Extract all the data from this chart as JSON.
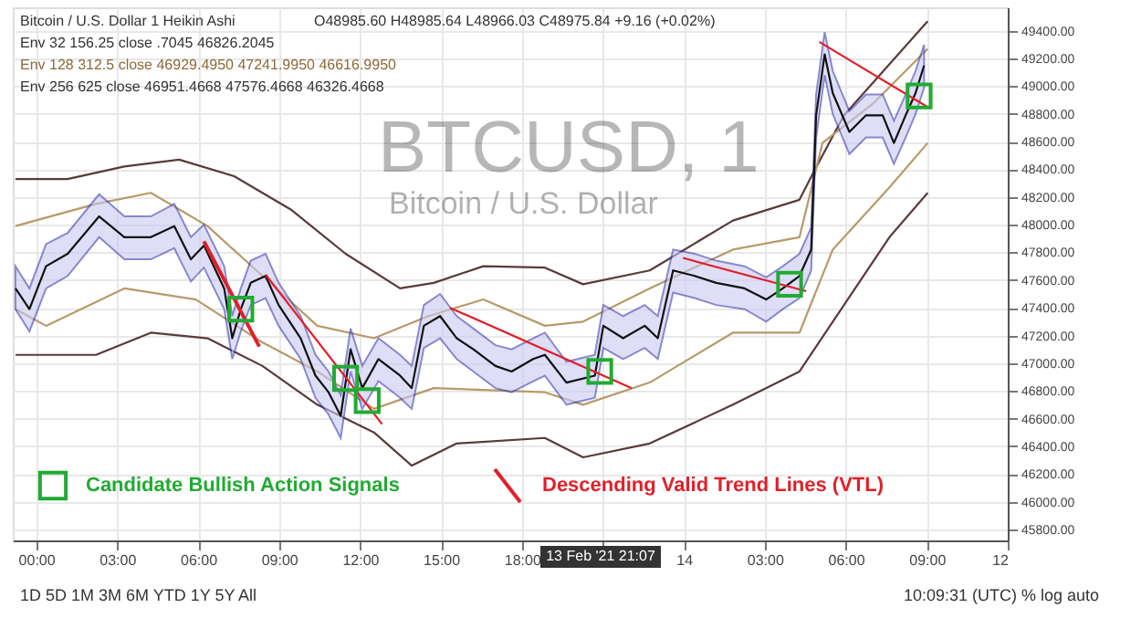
{
  "chart_data": {
    "type": "line",
    "title": "Bitcoin / U.S. Dollar  1  Heikin Ashi",
    "annotations": [
      "O48985.60 H48985.64 L48966.03 C48975.84 +9.16 (+0.02%)",
      "Env 32 156.25 close .7045 46826.2045",
      "Env 128 312.5 close 46929.4950 47241.9950 46616.9950",
      "Env 256 625 close 46951.4668 47576.4668 46326.4668",
      "BTCUSD, 1",
      "Bitcoin / U.S. Dollar",
      "13 Feb '21  21:07",
      "1D  5D  1M  3M  6M  YTD  1Y  5Y  All",
      "10:09:31 (UTC)   %   log   auto"
    ],
    "xlim": [
      "2021-02-12T23:08",
      "2021-02-14T12:00"
    ],
    "ylim": [
      45720,
      49570
    ],
    "xticks": [
      {
        "value": "2021-02-13T00:00",
        "label": "00:00"
      },
      {
        "value": "2021-02-13T03:00",
        "label": "03:00"
      },
      {
        "value": "2021-02-13T06:00",
        "label": "06:00"
      },
      {
        "value": "2021-02-13T09:00",
        "label": "09:00"
      },
      {
        "value": "2021-02-13T12:00",
        "label": "12:00"
      },
      {
        "value": "2021-02-13T15:00",
        "label": "15:00"
      },
      {
        "value": "2021-02-13T18:00",
        "label": "18:00"
      },
      {
        "value": "2021-02-13T21:00",
        "label": null
      },
      {
        "value": "2021-02-14T00:00",
        "label": "14"
      },
      {
        "value": "2021-02-14T03:00",
        "label": "03:00"
      },
      {
        "value": "2021-02-14T06:00",
        "label": "06:00"
      },
      {
        "value": "2021-02-14T09:00",
        "label": "09:00"
      },
      {
        "value": "2021-02-14T12:00",
        "label": "12"
      }
    ],
    "yticks": [
      {
        "value": 45800,
        "label": "45800.00"
      },
      {
        "value": 46000,
        "label": "46000.00"
      },
      {
        "value": 46200,
        "label": "46200.00"
      },
      {
        "value": 46400,
        "label": "46400.00"
      },
      {
        "value": 46600,
        "label": "46600.00"
      },
      {
        "value": 46800,
        "label": "46800.00"
      },
      {
        "value": 47000,
        "label": "47000.00"
      },
      {
        "value": 47200,
        "label": "47200.00"
      },
      {
        "value": 47400,
        "label": "47400.00"
      },
      {
        "value": 47600,
        "label": "47600.00"
      },
      {
        "value": 47800,
        "label": "47800.00"
      },
      {
        "value": 48000,
        "label": "48000.00"
      },
      {
        "value": 48200,
        "label": "48200.00"
      },
      {
        "value": 48400,
        "label": "48400.00"
      },
      {
        "value": 48600,
        "label": "48600.00"
      },
      {
        "value": 48800,
        "label": "48800.00"
      },
      {
        "value": 49000,
        "label": "49000.00"
      },
      {
        "value": 49200,
        "label": "49200.00"
      },
      {
        "value": 49400,
        "label": "49400.00"
      }
    ],
    "grid": true,
    "legend": "bottom left",
    "series": [
      {
        "color": "#5a3a3a",
        "x": [
          "2021-02-12T23:14",
          "2021-02-13T01:10",
          "2021-02-13T03:16",
          "2021-02-13T05:18",
          "2021-02-13T07:20",
          "2021-02-13T09:26",
          "2021-02-13T11:28",
          "2021-02-13T13:29",
          "2021-02-13T14:44",
          "2021-02-13T16:34",
          "2021-02-13T18:51",
          "2021-02-13T20:16",
          "2021-02-13T22:44",
          "2021-02-14T01:49",
          "2021-02-14T04:17",
          "2021-02-14T04:50",
          "2021-02-14T05:56",
          "2021-02-14T09:02"
        ],
        "values": [
          48330,
          48330,
          48420,
          48470,
          48350,
          48110,
          47790,
          47540,
          47580,
          47700,
          47690,
          47570,
          47670,
          48030,
          48180,
          48390,
          48790,
          49470
        ]
      },
      {
        "color": "#5a3a3a",
        "x": [
          "2021-02-12T23:14",
          "2021-02-13T02:13",
          "2021-02-13T04:15",
          "2021-02-13T06:21",
          "2021-02-13T08:23",
          "2021-02-13T10:25",
          "2021-02-13T12:31",
          "2021-02-13T13:55",
          "2021-02-13T15:35",
          "2021-02-13T18:51",
          "2021-02-13T20:16",
          "2021-02-13T22:44",
          "2021-02-14T01:49",
          "2021-02-14T04:17",
          "2021-02-14T05:56",
          "2021-02-14T07:37",
          "2021-02-14T09:02"
        ],
        "values": [
          47060,
          47060,
          47220,
          47180,
          46980,
          46700,
          46500,
          46260,
          46420,
          46460,
          46320,
          46420,
          46700,
          46940,
          47420,
          47910,
          48230
        ]
      },
      {
        "color": "#b89a6a",
        "x": [
          "2021-02-12T23:14",
          "2021-02-13T02:13",
          "2021-02-13T04:15",
          "2021-02-13T06:21",
          "2021-02-13T08:23",
          "2021-02-13T10:25",
          "2021-02-13T12:31",
          "2021-02-13T14:32",
          "2021-02-13T16:34",
          "2021-02-13T18:51",
          "2021-02-13T20:16",
          "2021-02-13T22:44",
          "2021-02-14T01:49",
          "2021-02-14T04:17",
          "2021-02-14T05:08",
          "2021-02-14T06:59",
          "2021-02-14T09:02"
        ],
        "values": [
          47990,
          48150,
          48230,
          47990,
          47630,
          47270,
          47180,
          47340,
          47460,
          47270,
          47300,
          47540,
          47820,
          47910,
          48590,
          48870,
          49270
        ]
      },
      {
        "color": "#b89a6a",
        "x": [
          "2021-02-12T23:14",
          "2021-02-13T00:22",
          "2021-02-13T03:16",
          "2021-02-13T05:55",
          "2021-02-13T08:23",
          "2021-02-13T10:25",
          "2021-02-13T12:31",
          "2021-02-13T14:44",
          "2021-02-13T18:51",
          "2021-02-13T20:16",
          "2021-02-13T22:44",
          "2021-02-14T01:49",
          "2021-02-14T04:17",
          "2021-02-14T05:31",
          "2021-02-14T07:37",
          "2021-02-14T09:02"
        ],
        "values": [
          47390,
          47270,
          47540,
          47460,
          47150,
          46940,
          46670,
          46820,
          46790,
          46700,
          46860,
          47220,
          47220,
          47820,
          48270,
          48590
        ]
      },
      {
        "color": "#111111",
        "x": [
          "2021-02-12T23:14",
          "2021-02-12T23:45",
          "2021-02-13T00:22",
          "2021-02-13T01:10",
          "2021-02-13T02:20",
          "2021-02-13T03:16",
          "2021-02-13T04:15",
          "2021-02-13T05:07",
          "2021-02-13T05:44",
          "2021-02-13T06:13",
          "2021-02-13T06:58",
          "2021-02-13T07:16",
          "2021-02-13T07:35",
          "2021-02-13T07:57",
          "2021-02-13T08:30",
          "2021-02-13T08:59",
          "2021-02-13T09:48",
          "2021-02-13T10:21",
          "2021-02-13T10:50",
          "2021-02-13T11:17",
          "2021-02-13T11:39",
          "2021-02-13T12:05",
          "2021-02-13T12:41",
          "2021-02-13T13:29",
          "2021-02-13T13:55",
          "2021-02-13T14:22",
          "2021-02-13T14:58",
          "2021-02-13T15:35",
          "2021-02-13T16:12",
          "2021-02-13T17:01",
          "2021-02-13T17:37",
          "2021-02-13T18:25",
          "2021-02-13T18:51",
          "2021-02-13T19:39",
          "2021-02-13T20:42",
          "2021-02-13T21:01",
          "2021-02-13T21:45",
          "2021-02-13T22:33",
          "2021-02-13T23:02",
          "2021-02-13T23:36",
          "2021-02-14T00:24",
          "2021-02-14T01:12",
          "2021-02-14T02:15",
          "2021-02-14T03:03",
          "2021-02-14T03:40",
          "2021-02-14T04:17",
          "2021-02-14T04:43",
          "2021-02-14T04:54",
          "2021-02-14T05:13",
          "2021-02-14T05:31",
          "2021-02-14T06:08",
          "2021-02-14T06:45",
          "2021-02-14T07:22",
          "2021-02-14T07:47",
          "2021-02-14T08:13",
          "2021-02-14T08:35",
          "2021-02-14T08:54"
        ],
        "values": [
          47540,
          47390,
          47700,
          47790,
          48060,
          47910,
          47910,
          47990,
          47750,
          47850,
          47540,
          47180,
          47390,
          47580,
          47630,
          47420,
          47180,
          46910,
          46790,
          46620,
          47100,
          46820,
          47030,
          46910,
          46820,
          47270,
          47340,
          47180,
          47100,
          46980,
          46940,
          47030,
          47060,
          46860,
          46910,
          47270,
          47180,
          47270,
          47180,
          47670,
          47630,
          47580,
          47540,
          47460,
          47540,
          47630,
          47820,
          48790,
          49230,
          48950,
          48670,
          48790,
          48790,
          48590,
          48790,
          48950,
          49150
        ],
        "lower": [
          47390,
          47230,
          47540,
          47630,
          47910,
          47750,
          47750,
          47830,
          47590,
          47690,
          47390,
          47030,
          47230,
          47420,
          47470,
          47270,
          47030,
          46750,
          46630,
          46460,
          46940,
          46670,
          46870,
          46750,
          46670,
          47110,
          47180,
          47030,
          46940,
          46820,
          46790,
          46870,
          46910,
          46700,
          46750,
          47110,
          47030,
          47110,
          47030,
          47510,
          47470,
          47420,
          47390,
          47300,
          47390,
          47470,
          47670,
          48630,
          49080,
          48800,
          48510,
          48630,
          48630,
          48440,
          48630,
          48800,
          48990
        ],
        "upper": [
          47700,
          47540,
          47860,
          47940,
          48220,
          48060,
          48060,
          48150,
          47910,
          48000,
          47700,
          47340,
          47540,
          47740,
          47790,
          47580,
          47340,
          47060,
          46940,
          46770,
          47250,
          46980,
          47180,
          47060,
          46980,
          47420,
          47500,
          47340,
          47250,
          47130,
          47100,
          47180,
          47220,
          47010,
          47060,
          47420,
          47340,
          47420,
          47340,
          47820,
          47790,
          47740,
          47700,
          47620,
          47700,
          47790,
          47980,
          48940,
          49390,
          49110,
          48820,
          48940,
          48940,
          48750,
          48940,
          49110,
          49300
        ]
      },
      {
        "name": "Descending Valid Trend Lines (VTL)",
        "color": "#e0202a",
        "x": [
          "2021-02-13T06:13",
          "2021-02-13T08:16"
        ],
        "values": [
          47880,
          47120
        ]
      },
      {
        "color": "#e0202a",
        "x": [
          "2021-02-13T08:30",
          "2021-02-13T12:49"
        ],
        "values": [
          47640,
          46560
        ]
      },
      {
        "color": "#e0202a",
        "x": [
          "2021-02-13T15:20",
          "2021-02-13T22:04"
        ],
        "values": [
          47400,
          46820
        ]
      },
      {
        "color": "#e0202a",
        "x": [
          "2021-02-13T23:58",
          "2021-02-14T04:32"
        ],
        "values": [
          47760,
          47520
        ]
      },
      {
        "color": "#e0202a",
        "x": [
          "2021-02-14T05:01",
          "2021-02-14T09:02"
        ],
        "values": [
          49320,
          48850
        ]
      },
      {
        "type": "scatter",
        "name": "Candidate Bullish Action Signals",
        "color": "#22aa33",
        "marker": "square",
        "x": [
          "2021-02-13T07:35",
          "2021-02-13T11:28",
          "2021-02-13T12:16",
          "2021-02-13T20:53",
          "2021-02-14T03:55",
          "2021-02-14T08:43"
        ],
        "values": [
          47390,
          46890,
          46730,
          46940,
          47570,
          48930
        ]
      }
    ]
  }
}
